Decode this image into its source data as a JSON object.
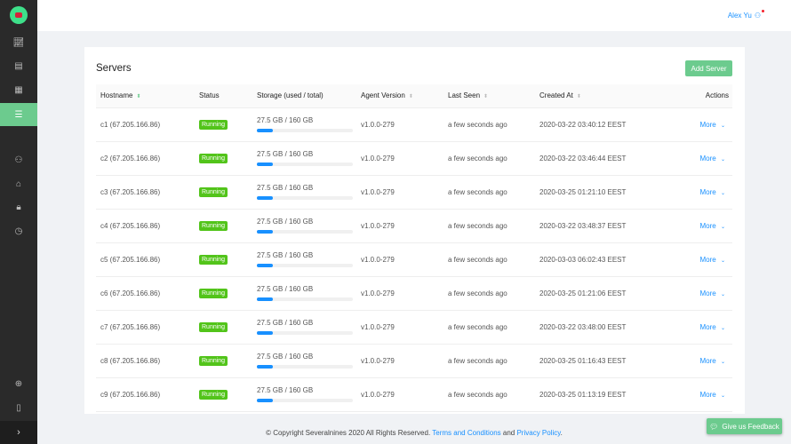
{
  "header": {
    "user_name": "Alex Yu"
  },
  "sidebar": {
    "items": [
      "chart-icon",
      "report-icon",
      "schedule-icon",
      "servers-icon",
      "user-icon",
      "bank-icon",
      "lock-icon",
      "history-icon",
      "support-icon",
      "docs-icon"
    ],
    "active": "servers-icon"
  },
  "page": {
    "title": "Servers",
    "add_button": "Add Server"
  },
  "table": {
    "columns": [
      "Hostname",
      "Status",
      "Storage (used / total)",
      "Agent Version",
      "Last Seen",
      "Created At",
      "Actions"
    ],
    "rows": [
      {
        "host": "c1 (67.205.166.86)",
        "status": "Running",
        "storage": "27.5 GB / 160 GB",
        "usage": 17,
        "version": "v1.0.0-279",
        "seen": "a few seconds ago",
        "created": "2020-03-22 03:40:12 EEST",
        "action": "More"
      },
      {
        "host": "c2 (67.205.166.86)",
        "status": "Running",
        "storage": "27.5 GB / 160 GB",
        "usage": 17,
        "version": "v1.0.0-279",
        "seen": "a few seconds ago",
        "created": "2020-03-22 03:46:44 EEST",
        "action": "More"
      },
      {
        "host": "c3 (67.205.166.86)",
        "status": "Running",
        "storage": "27.5 GB / 160 GB",
        "usage": 17,
        "version": "v1.0.0-279",
        "seen": "a few seconds ago",
        "created": "2020-03-25 01:21:10 EEST",
        "action": "More"
      },
      {
        "host": "c4 (67.205.166.86)",
        "status": "Running",
        "storage": "27.5 GB / 160 GB",
        "usage": 17,
        "version": "v1.0.0-279",
        "seen": "a few seconds ago",
        "created": "2020-03-22 03:48:37 EEST",
        "action": "More"
      },
      {
        "host": "c5 (67.205.166.86)",
        "status": "Running",
        "storage": "27.5 GB / 160 GB",
        "usage": 17,
        "version": "v1.0.0-279",
        "seen": "a few seconds ago",
        "created": "2020-03-03 06:02:43 EEST",
        "action": "More"
      },
      {
        "host": "c6 (67.205.166.86)",
        "status": "Running",
        "storage": "27.5 GB / 160 GB",
        "usage": 17,
        "version": "v1.0.0-279",
        "seen": "a few seconds ago",
        "created": "2020-03-25 01:21:06 EEST",
        "action": "More"
      },
      {
        "host": "c7 (67.205.166.86)",
        "status": "Running",
        "storage": "27.5 GB / 160 GB",
        "usage": 17,
        "version": "v1.0.0-279",
        "seen": "a few seconds ago",
        "created": "2020-03-22 03:48:00 EEST",
        "action": "More"
      },
      {
        "host": "c8 (67.205.166.86)",
        "status": "Running",
        "storage": "27.5 GB / 160 GB",
        "usage": 17,
        "version": "v1.0.0-279",
        "seen": "a few seconds ago",
        "created": "2020-03-25 01:16:43 EEST",
        "action": "More"
      },
      {
        "host": "c9 (67.205.166.86)",
        "status": "Running",
        "storage": "27.5 GB / 160 GB",
        "usage": 17,
        "version": "v1.0.0-279",
        "seen": "a few seconds ago",
        "created": "2020-03-25 01:13:19 EEST",
        "action": "More"
      }
    ]
  },
  "footer": {
    "copyright": "© Copyright Severalnines 2020 All Rights Reserved.",
    "terms": "Terms and Conditions",
    "and": "and",
    "privacy": "Privacy Policy",
    "period": "."
  },
  "feedback": {
    "label": "Give us Feedback"
  },
  "colors": {
    "accent": "#6ccb8e",
    "link": "#1890ff",
    "running": "#52c41a",
    "sidebar": "#2a2a2a"
  }
}
